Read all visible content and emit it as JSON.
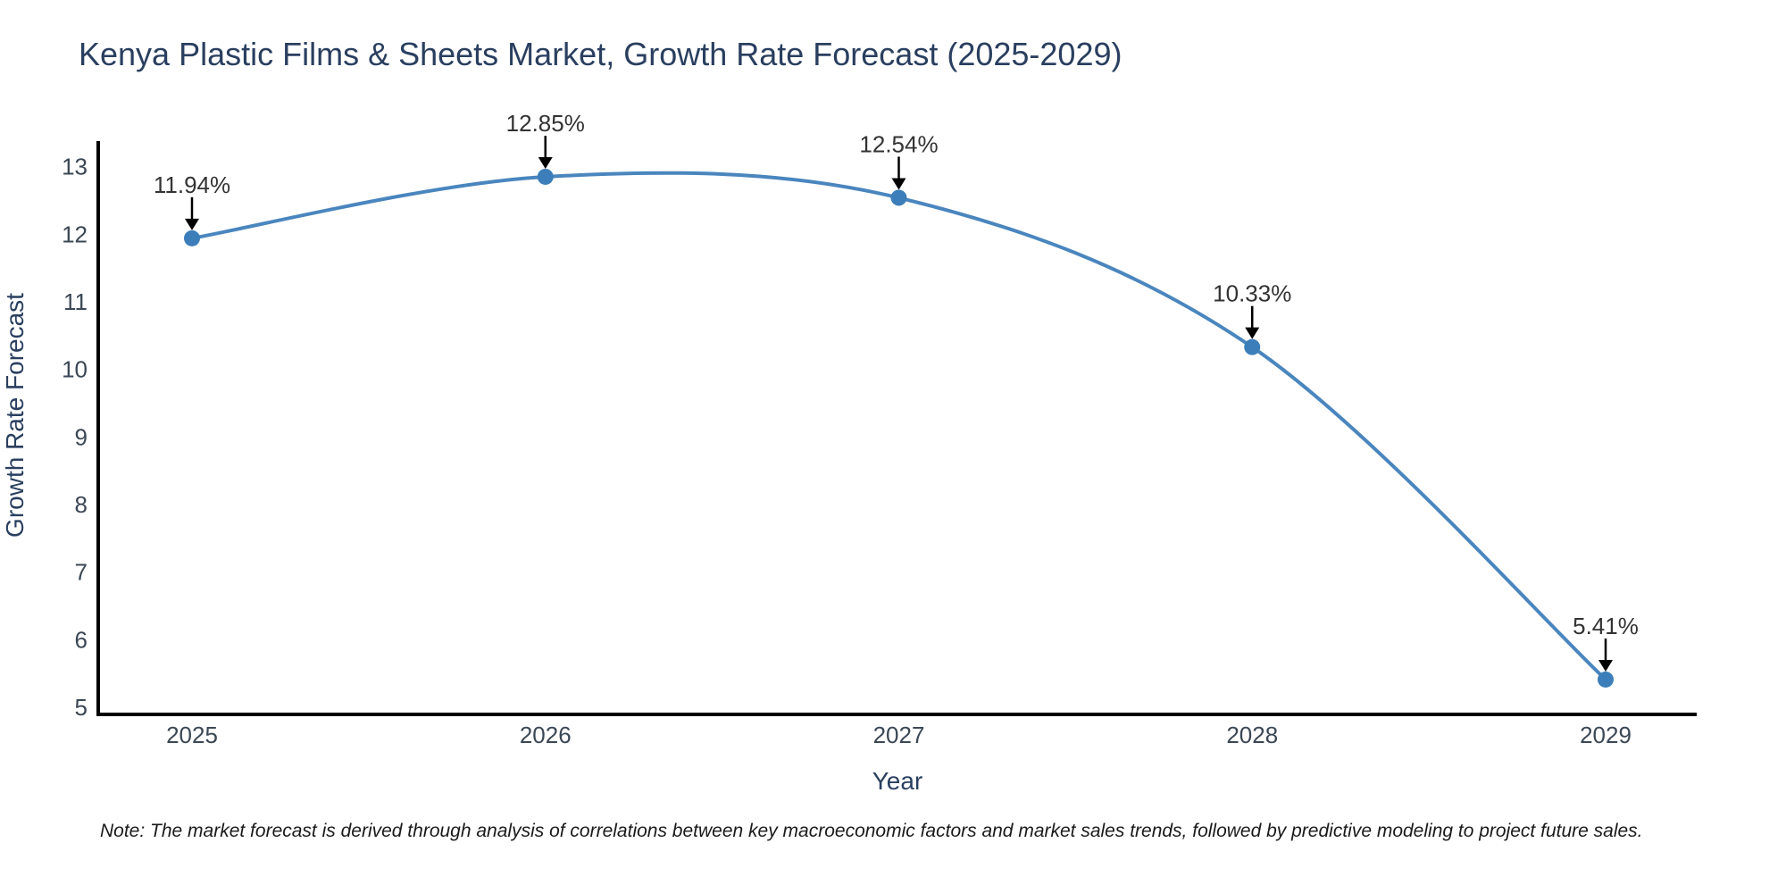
{
  "chart_data": {
    "type": "line",
    "title": "Kenya Plastic Films & Sheets Market, Growth Rate Forecast (2025-2029)",
    "xlabel": "Year",
    "ylabel": "Growth Rate Forecast",
    "categories": [
      "2025",
      "2026",
      "2027",
      "2028",
      "2029"
    ],
    "x": [
      2025,
      2026,
      2027,
      2028,
      2029
    ],
    "values": [
      11.94,
      12.85,
      12.54,
      10.33,
      5.41
    ],
    "point_labels": [
      "11.94%",
      "12.85%",
      "12.54%",
      "10.33%",
      "5.41%"
    ],
    "yticks": [
      5,
      6,
      7,
      8,
      9,
      10,
      11,
      12,
      13
    ],
    "ylim": [
      5,
      13.4
    ],
    "grid": false,
    "legend": "none",
    "line_color": "#4a86be",
    "marker_color": "#3c7eb9",
    "axis_color": "#000000",
    "annotation_arrow_color": "#000000"
  },
  "footnote": "Note: The market forecast is derived through analysis of correlations between key macroeconomic factors and market sales trends, followed by predictive modeling to project future sales."
}
